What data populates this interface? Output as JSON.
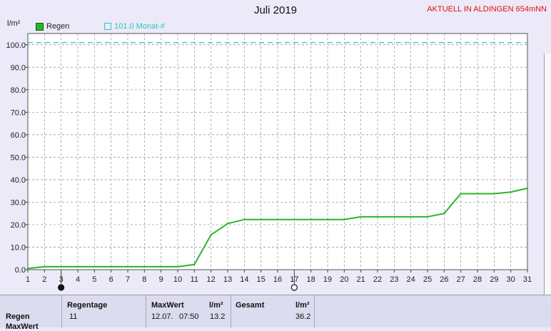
{
  "title": "Juli 2019",
  "station_label": "AKTUELL IN ALDINGEN 654mNN",
  "colors": {
    "series": "#2bb52b",
    "month_line": "#27c7c7",
    "station": "#e01010"
  },
  "chart_data": {
    "type": "line",
    "ylabel": "l/m²",
    "ylim": [
      0,
      105
    ],
    "yticks": [
      "0.0",
      "10.0",
      "20.0",
      "30.0",
      "40.0",
      "50.0",
      "60.0",
      "70.0",
      "80.0",
      "90.0",
      "100.0"
    ],
    "xlim": [
      1,
      31
    ],
    "xticks": [
      "1",
      "2",
      "3",
      "4",
      "5",
      "6",
      "7",
      "8",
      "9",
      "10",
      "11",
      "12",
      "13",
      "14",
      "15",
      "16",
      "17",
      "18",
      "19",
      "20",
      "21",
      "22",
      "23",
      "24",
      "25",
      "26",
      "27",
      "28",
      "29",
      "30",
      "31"
    ],
    "grid": true,
    "legend_position": "top-left",
    "series": [
      {
        "name": "Regen",
        "x": [
          1,
          2,
          3,
          4,
          5,
          6,
          7,
          8,
          9,
          10,
          11,
          12,
          13,
          14,
          15,
          16,
          17,
          18,
          19,
          20,
          21,
          22,
          23,
          24,
          25,
          26,
          27,
          28,
          29,
          30,
          31
        ],
        "values": [
          0.5,
          1.3,
          1.3,
          1.3,
          1.3,
          1.3,
          1.3,
          1.3,
          1.3,
          1.3,
          2.3,
          15.5,
          20.5,
          22.3,
          22.3,
          22.3,
          22.3,
          22.3,
          22.3,
          22.3,
          23.5,
          23.5,
          23.5,
          23.5,
          23.5,
          25.0,
          33.8,
          33.8,
          33.8,
          34.5,
          36.2
        ]
      }
    ],
    "reference_line": {
      "label": "101.0 Monat-#",
      "value": 101.0
    },
    "moon_phase_markers": [
      3,
      17
    ]
  },
  "stats": {
    "row_label": "Regen",
    "next_row_label": "MaxWert",
    "regentage_label": "Regentage",
    "regentage_value": "11",
    "maxwert_label": "MaxWert",
    "maxwert_unit": "l/m²",
    "maxwert_date": "12.07.",
    "maxwert_time": "07:50",
    "maxwert_value": "13.2",
    "gesamt_label": "Gesamt",
    "gesamt_unit": "l/m²",
    "gesamt_value": "36.2"
  }
}
